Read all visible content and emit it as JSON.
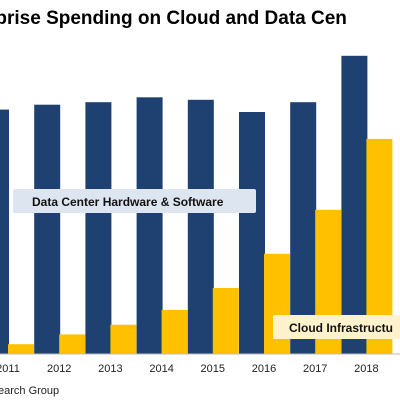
{
  "chart_data": {
    "type": "bar",
    "title": "rprise Spending on Cloud and Data Cen",
    "categories": [
      "2011",
      "2012",
      "2013",
      "2014",
      "2015",
      "2016",
      "2017",
      "2018"
    ],
    "series": [
      {
        "values": [
          100,
          102,
          103,
          105,
          104,
          99,
          103,
          122
        ]
      },
      {
        "values": [
          4,
          8,
          12,
          18,
          27,
          41,
          59,
          88
        ]
      }
    ],
    "colors": [
      "#1f4172",
      "#ffc000"
    ],
    "xlabel": "",
    "ylabel": "",
    "ylim": [
      0,
      135
    ],
    "grid": false,
    "annotations": [
      {
        "text": "Data Center Hardware & Software",
        "style": "light-blue-box"
      },
      {
        "text": "Cloud Infrastructu",
        "style": "light-yellow-box"
      }
    ],
    "source": "earch Group"
  }
}
